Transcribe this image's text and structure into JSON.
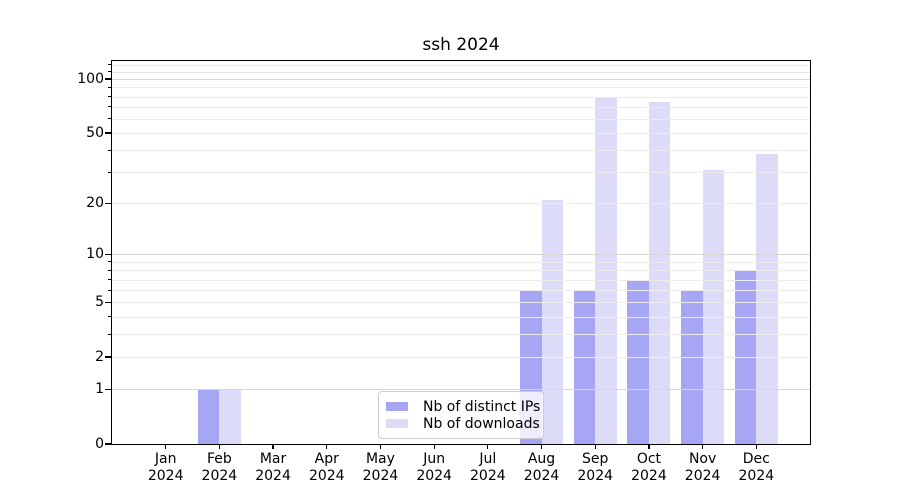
{
  "chart_data": {
    "type": "bar",
    "title": "ssh 2024",
    "categories": [
      "Jan",
      "Feb",
      "Mar",
      "Apr",
      "May",
      "Jun",
      "Jul",
      "Aug",
      "Sep",
      "Oct",
      "Nov",
      "Dec"
    ],
    "category_sub_label": "2024",
    "series": [
      {
        "name": "Nb of distinct IPs",
        "color": "#a6a6f4",
        "values": [
          0,
          1,
          0,
          0,
          0,
          0,
          0,
          6,
          6,
          7,
          6,
          8
        ]
      },
      {
        "name": "Nb of downloads",
        "color": "#dcdcf8",
        "values": [
          0,
          1,
          0,
          0,
          0,
          0,
          0,
          21,
          80,
          75,
          31,
          38
        ]
      }
    ],
    "y_axis": {
      "scale": "log1p",
      "ylim": [
        0,
        126
      ],
      "ticks": [
        100,
        50,
        20,
        10,
        5,
        2,
        1,
        0
      ],
      "major_gridlines": [
        1,
        10,
        100
      ],
      "minor_gridlines": [
        2,
        3,
        4,
        5,
        6,
        7,
        8,
        9,
        20,
        30,
        40,
        50,
        60,
        70,
        80,
        90,
        110,
        120
      ]
    },
    "grid": true,
    "legend_position": "bottom-center",
    "colors": {
      "background": "#ffffff",
      "spine": "#000000",
      "grid_minor": "#ececec",
      "grid_major": "#d6d6d6",
      "bar_ips": "#a6a6f4",
      "bar_downloads": "#dcdcf8"
    }
  }
}
